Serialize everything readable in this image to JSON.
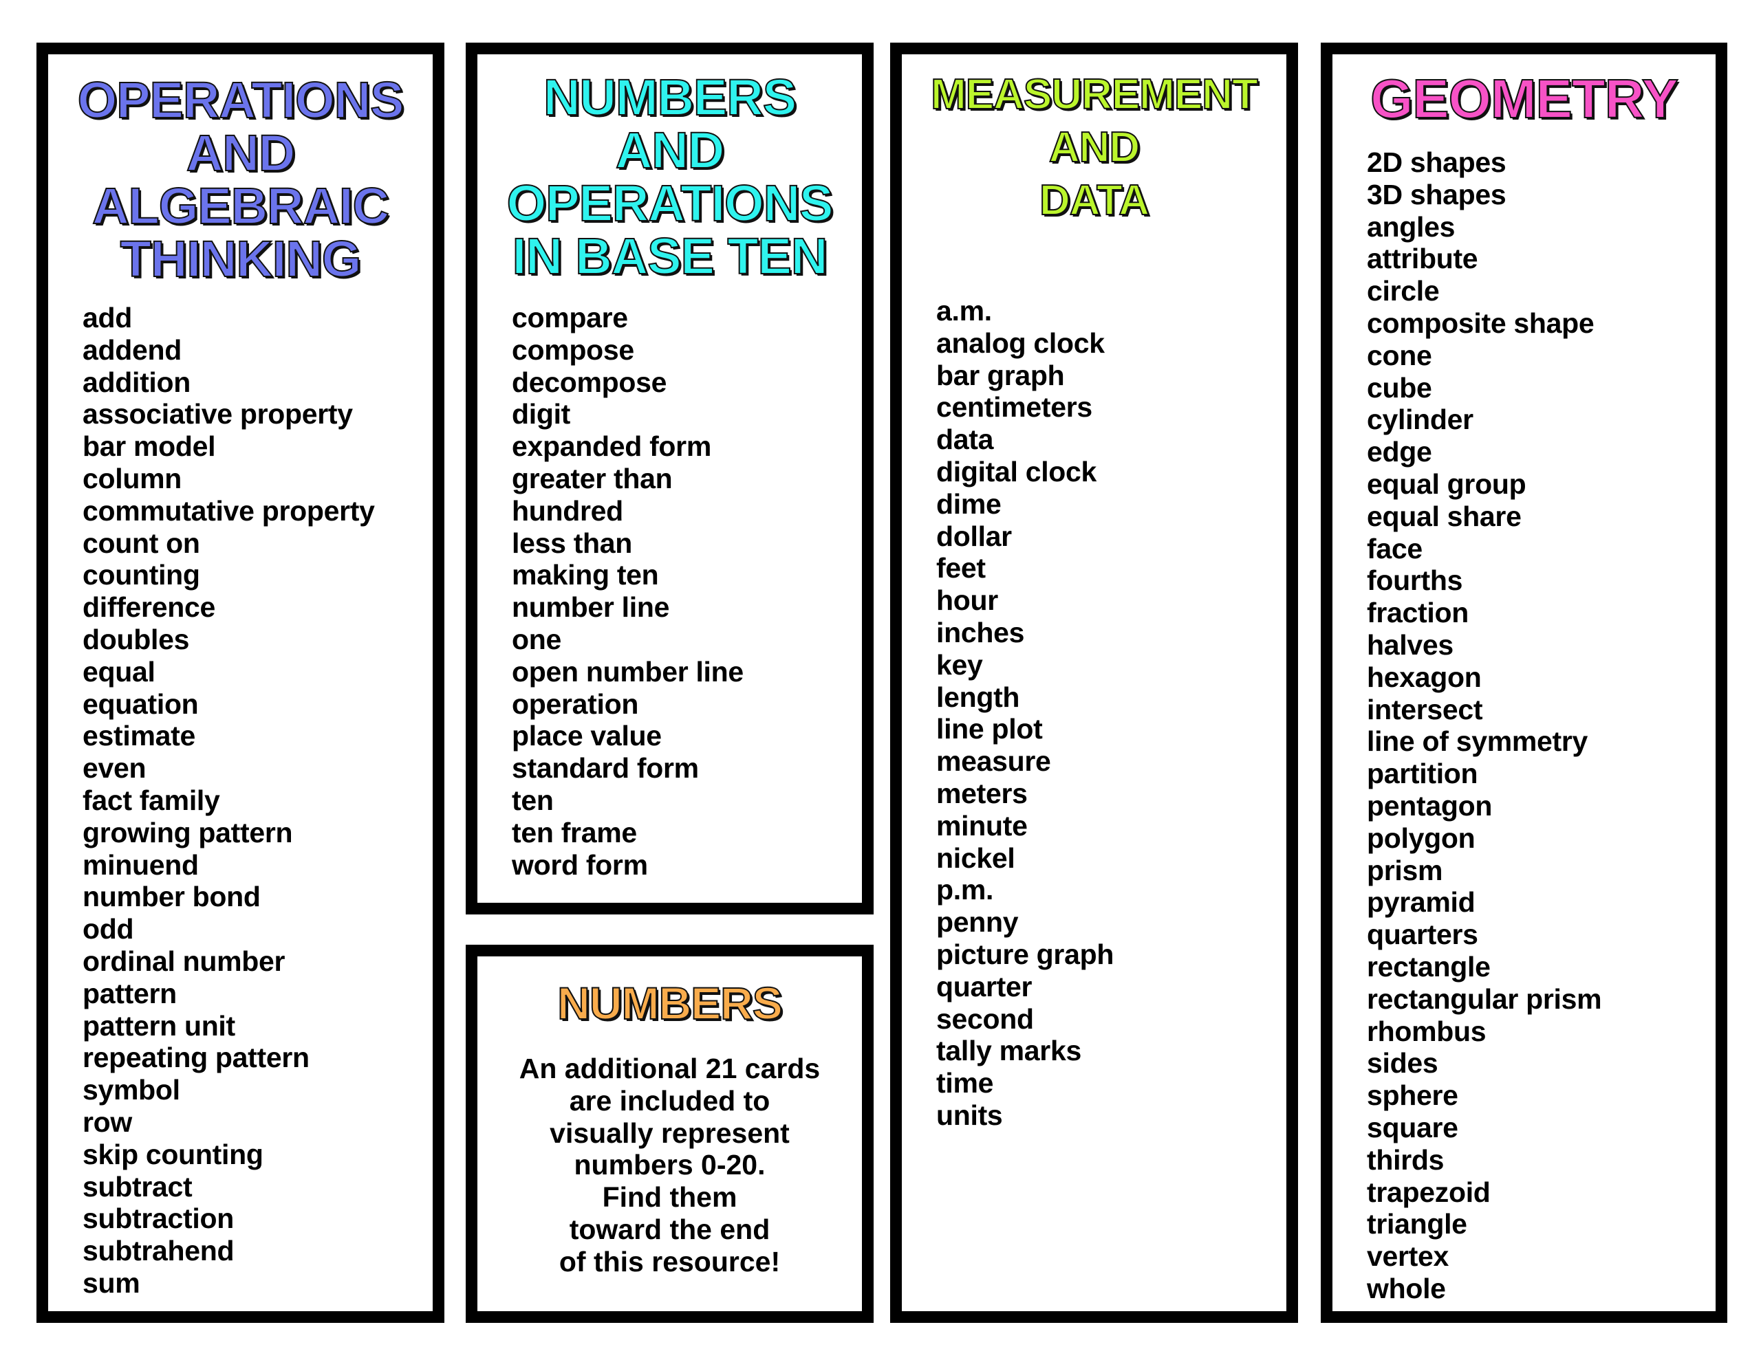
{
  "colors": {
    "oa": "#6b74ec",
    "nbt": "#2ff3ee",
    "md": "#bbf52c",
    "geo": "#f752c6",
    "num": "#f9ac4c"
  },
  "cards": {
    "oa": {
      "title": [
        "OPERATIONS",
        "AND",
        "ALGEBRAIC",
        "THINKING"
      ],
      "words": [
        "add",
        "addend",
        "addition",
        "associative property",
        "bar model",
        "column",
        "commutative property",
        "count on",
        "counting",
        "difference",
        "doubles",
        "equal",
        "equation",
        "estimate",
        "even",
        "fact family",
        "growing pattern",
        "minuend",
        "number bond",
        "odd",
        "ordinal number",
        "pattern",
        "pattern unit",
        "repeating pattern",
        "symbol",
        "row",
        "skip counting",
        "subtract",
        "subtraction",
        "subtrahend",
        "sum"
      ]
    },
    "nbt": {
      "title": [
        "NUMBERS",
        "AND",
        "OPERATIONS",
        "IN BASE TEN"
      ],
      "words": [
        "compare",
        "compose",
        "decompose",
        "digit",
        "expanded form",
        "greater than",
        "hundred",
        "less than",
        "making ten",
        "number line",
        "one",
        "open number line",
        "operation",
        "place value",
        "standard form",
        "ten",
        "ten frame",
        "word form"
      ]
    },
    "num": {
      "title": [
        "NUMBERS"
      ],
      "text": [
        "An additional 21 cards",
        "are included to",
        "visually represent",
        "numbers 0-20.",
        "Find them",
        "toward the end",
        "of this resource!"
      ]
    },
    "md": {
      "title": [
        "MEASUREMENT",
        "AND",
        "DATA"
      ],
      "words": [
        "a.m.",
        "analog clock",
        "bar graph",
        "centimeters",
        "data",
        "digital clock",
        "dime",
        "dollar",
        "feet",
        "hour",
        "inches",
        "key",
        "length",
        "line plot",
        "measure",
        "meters",
        "minute",
        "nickel",
        "p.m.",
        "penny",
        "picture graph",
        "quarter",
        "second",
        "tally marks",
        "time",
        "units"
      ]
    },
    "geo": {
      "title": [
        "GEOMETRY"
      ],
      "words": [
        "2D shapes",
        "3D shapes",
        "angles",
        "attribute",
        "circle",
        "composite shape",
        "cone",
        "cube",
        "cylinder",
        "edge",
        "equal group",
        "equal share",
        "face",
        "fourths",
        "fraction",
        "halves",
        "hexagon",
        "intersect",
        "line of symmetry",
        "partition",
        "pentagon",
        "polygon",
        "prism",
        "pyramid",
        "quarters",
        "rectangle",
        "rectangular prism",
        "rhombus",
        "sides",
        "sphere",
        "square",
        "thirds",
        "trapezoid",
        "triangle",
        "vertex",
        "whole"
      ]
    }
  }
}
